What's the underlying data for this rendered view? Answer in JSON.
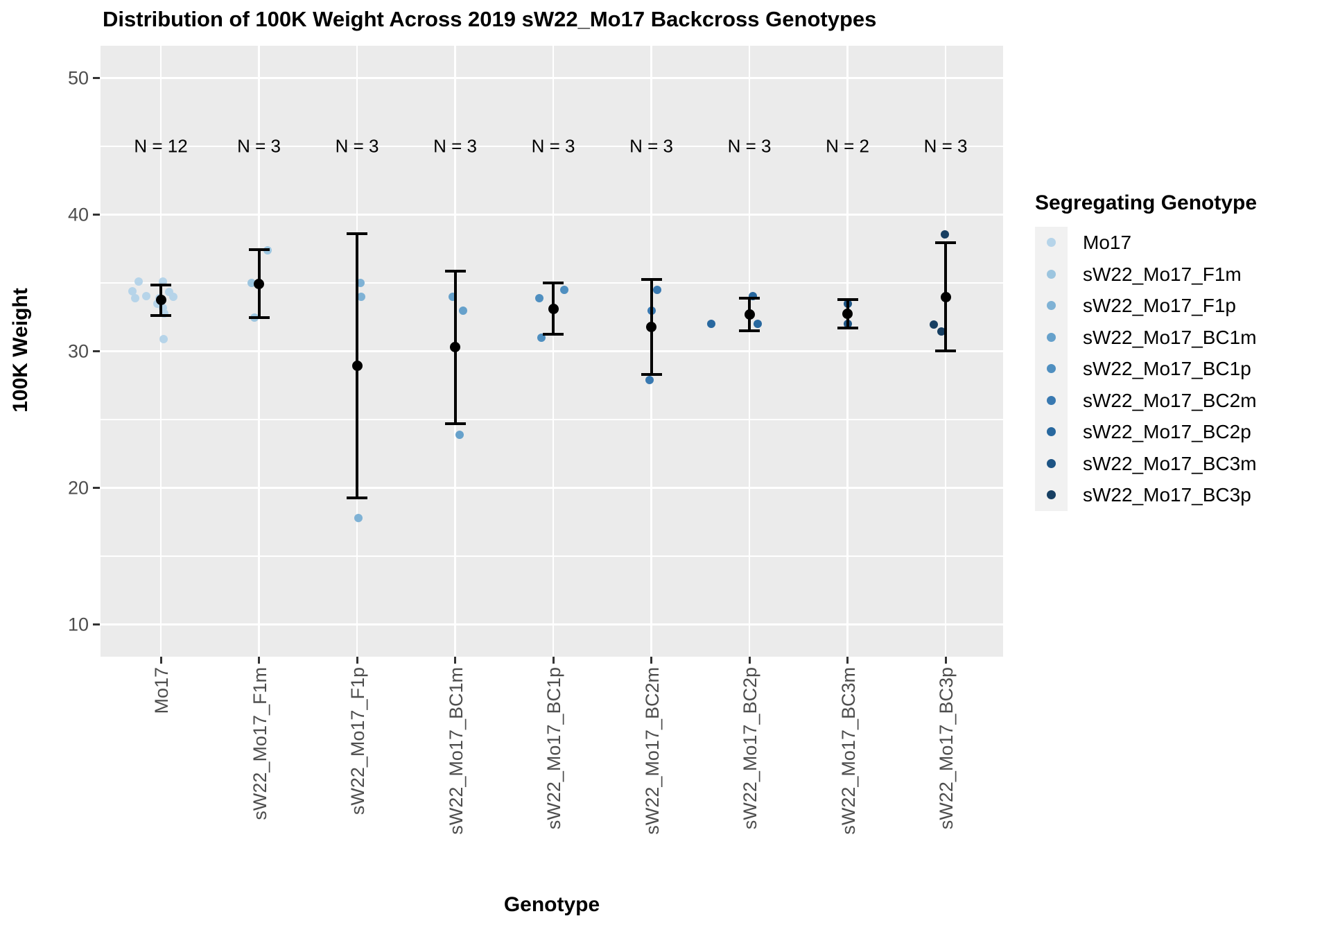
{
  "title": "Distribution of 100K Weight Across 2019 sW22_Mo17 Backcross Genotypes",
  "x_axis_title": "Genotype",
  "y_axis_title": "100K Weight",
  "legend": {
    "title": "Segregating Genotype"
  },
  "colors": {
    "panel_bg": "#EBEBEB",
    "gridline": "#FFFFFF",
    "tick_label": "#4D4D4D",
    "tick_mark": "#333333",
    "stat_black": "#000000"
  },
  "chart_data": {
    "type": "scatter",
    "title": "Distribution of 100K Weight Across 2019 sW22_Mo17 Backcross Genotypes",
    "xlabel": "Genotype",
    "ylabel": "100K Weight",
    "legend_title": "Segregating Genotype",
    "legend_position": "right",
    "grid": true,
    "ylim": [
      7.6,
      52.4
    ],
    "y_ticks": [
      10,
      20,
      30,
      40,
      50
    ],
    "y_minor_ticks": [
      15,
      25,
      35,
      45
    ],
    "n_label_y": 45,
    "groups": [
      {
        "label": "Mo17",
        "n_label": "N = 12",
        "color": "#B6D4E9",
        "mean": 33.75,
        "upper": 34.88,
        "lower": 32.62,
        "points": [
          {
            "dx": -32,
            "v": 35.1
          },
          {
            "dx": -41,
            "v": 34.4
          },
          {
            "dx": -37,
            "v": 33.9
          },
          {
            "dx": -21,
            "v": 34.05
          },
          {
            "dx": 3,
            "v": 35.1
          },
          {
            "dx": 12,
            "v": 34.35
          },
          {
            "dx": 18,
            "v": 34.0
          },
          {
            "dx": -5,
            "v": 33.5
          },
          {
            "dx": 3,
            "v": 33.2
          },
          {
            "dx": 5,
            "v": 32.8
          },
          {
            "dx": -2,
            "v": 33.9
          },
          {
            "dx": 4,
            "v": 30.9
          }
        ]
      },
      {
        "label": "sW22_Mo17_F1m",
        "n_label": "N = 3",
        "color": "#9CC5DF",
        "mean": 34.95,
        "upper": 37.43,
        "lower": 32.47,
        "points": [
          {
            "dx": 12,
            "v": 37.4
          },
          {
            "dx": -11,
            "v": 35.0
          },
          {
            "dx": -7,
            "v": 32.45
          }
        ]
      },
      {
        "label": "sW22_Mo17_F1p",
        "n_label": "N = 3",
        "color": "#7FB2D5",
        "mean": 28.93,
        "upper": 38.59,
        "lower": 19.27,
        "points": [
          {
            "dx": 5,
            "v": 35.0
          },
          {
            "dx": 6,
            "v": 34.0
          },
          {
            "dx": 2,
            "v": 17.8
          }
        ]
      },
      {
        "label": "sW22_Mo17_BC1m",
        "n_label": "N = 3",
        "color": "#66A1CB",
        "mean": 30.3,
        "upper": 35.87,
        "lower": 24.73,
        "points": [
          {
            "dx": -4,
            "v": 34.0
          },
          {
            "dx": 11,
            "v": 33.0
          },
          {
            "dx": 6,
            "v": 23.9
          }
        ]
      },
      {
        "label": "sW22_Mo17_BC1p",
        "n_label": "N = 3",
        "color": "#4F8FC0",
        "mean": 33.13,
        "upper": 35.0,
        "lower": 31.27,
        "points": [
          {
            "dx": 16,
            "v": 34.5
          },
          {
            "dx": -20,
            "v": 33.9
          },
          {
            "dx": -17,
            "v": 31.0
          }
        ]
      },
      {
        "label": "sW22_Mo17_BC2m",
        "n_label": "N = 3",
        "color": "#3979B1",
        "mean": 31.8,
        "upper": 35.27,
        "lower": 28.33,
        "points": [
          {
            "dx": 8,
            "v": 34.5
          },
          {
            "dx": 0,
            "v": 33.0
          },
          {
            "dx": -3,
            "v": 27.9
          }
        ]
      },
      {
        "label": "sW22_Mo17_BC2p",
        "n_label": "N = 3",
        "color": "#28689F",
        "mean": 32.68,
        "upper": 33.87,
        "lower": 31.5,
        "points": [
          {
            "dx": -55,
            "v": 32.0
          },
          {
            "dx": 5,
            "v": 34.05
          },
          {
            "dx": 12,
            "v": 32.0
          }
        ]
      },
      {
        "label": "sW22_Mo17_BC3m",
        "n_label": "N = 2",
        "color": "#1D5484",
        "mean": 32.75,
        "upper": 33.81,
        "lower": 31.69,
        "points": [
          {
            "dx": 0,
            "v": 33.5
          },
          {
            "dx": 0,
            "v": 32.0
          }
        ]
      },
      {
        "label": "sW22_Mo17_BC3p",
        "n_label": "N = 3",
        "color": "#173F62",
        "mean": 33.99,
        "upper": 37.95,
        "lower": 30.03,
        "points": [
          {
            "dx": -1,
            "v": 38.55
          },
          {
            "dx": -17,
            "v": 31.95
          },
          {
            "dx": -6,
            "v": 31.46
          }
        ]
      }
    ]
  }
}
